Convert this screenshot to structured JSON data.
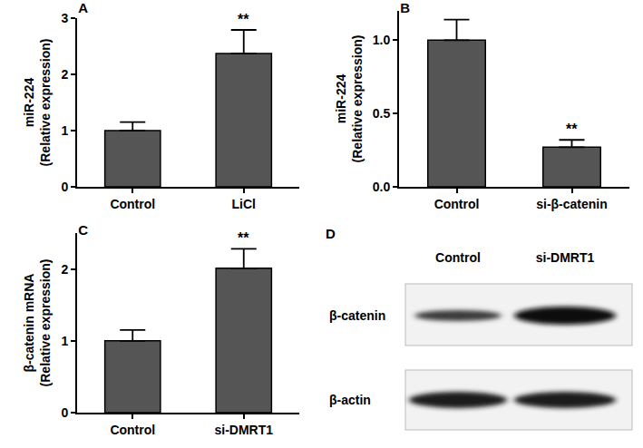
{
  "chart_data": [
    {
      "type": "bar",
      "title": "A",
      "ylabel": "miR-224\n(Relative expression)",
      "categories": [
        "Control",
        "LiCl"
      ],
      "values": [
        1.0,
        2.37
      ],
      "errors": [
        0.15,
        0.42
      ],
      "color": "#555555",
      "ylim": [
        0,
        3
      ],
      "yticks": [
        0,
        1,
        2,
        3
      ],
      "grid": false,
      "annotations": [
        {
          "x": "LiCl",
          "text": "**"
        }
      ]
    },
    {
      "type": "bar",
      "title": "B",
      "ylabel": "miR-224\n(Relative expression)",
      "categories": [
        "Control",
        "si-β-catenin"
      ],
      "values": [
        1.0,
        0.27
      ],
      "errors": [
        0.14,
        0.05
      ],
      "color": "#555555",
      "ylim": [
        0,
        1.2
      ],
      "yticks": [
        {
          "value": 0,
          "label": "0.0"
        },
        {
          "value": 0.5,
          "label": "0.5"
        },
        {
          "value": 1,
          "label": "1.0"
        }
      ],
      "grid": false,
      "annotations": [
        {
          "x": "si-β-catenin",
          "text": "**"
        }
      ]
    },
    {
      "type": "bar",
      "title": "C",
      "ylabel": "β-catenin mRNA\n(Relative expression)",
      "categories": [
        "Control",
        "si-DMRT1"
      ],
      "values": [
        1.0,
        2.01
      ],
      "errors": [
        0.15,
        0.27
      ],
      "color": "#555555",
      "ylim": [
        0,
        2.5
      ],
      "yticks": [
        0,
        1,
        2
      ],
      "grid": false,
      "annotations": [
        {
          "x": "si-DMRT1",
          "text": "**"
        }
      ]
    }
  ],
  "blot": {
    "title": "D",
    "lanes": [
      "Control",
      "si-DMRT1"
    ],
    "rows": [
      "β-catenin",
      "β-actin"
    ]
  }
}
